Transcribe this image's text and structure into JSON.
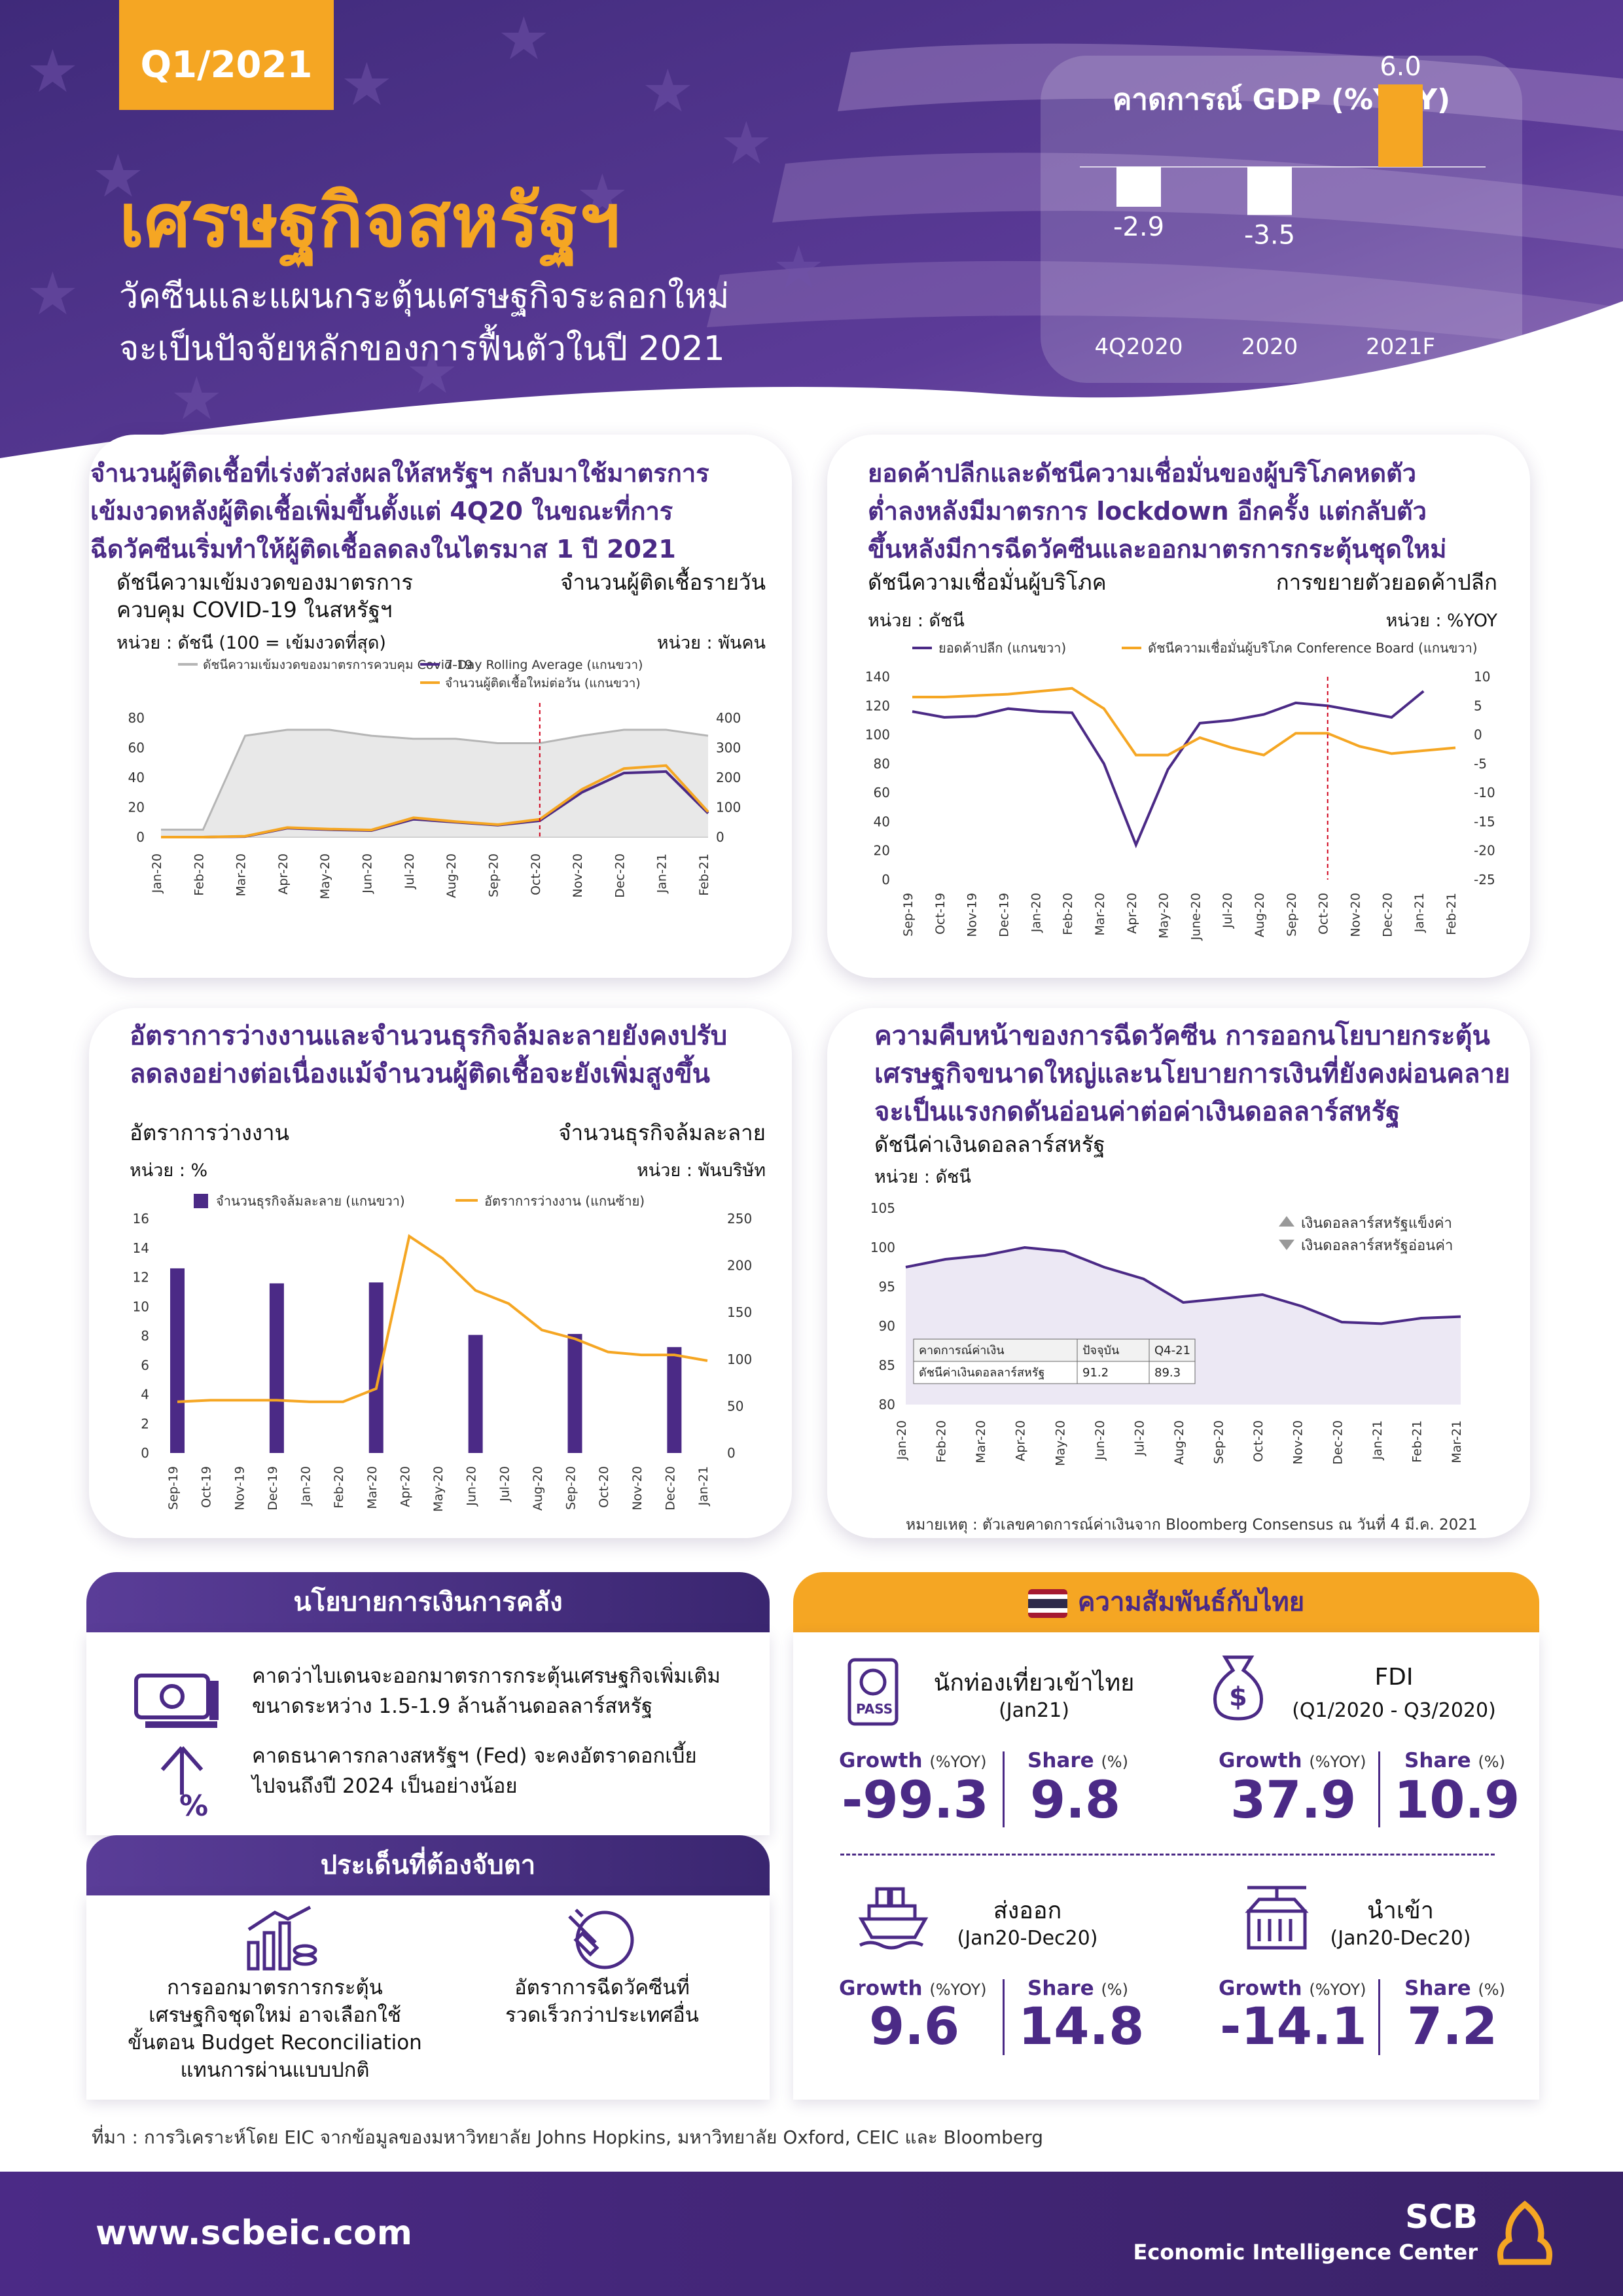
{
  "header": {
    "quarter": "Q1/2021",
    "title": "เศรษฐกิจสหรัฐฯ",
    "subtitle_line1": "วัคซีนและแผนกระตุ้นเศรษฐกิจระลอกใหม่",
    "subtitle_line2": "จะเป็นปัจจัยหลักของการฟื้นตัวในปี 2021"
  },
  "gdp": {
    "title": "คาดการณ์ GDP (%YOY)",
    "chart_data": {
      "type": "bar",
      "categories": [
        "4Q2020",
        "2020",
        "2021F"
      ],
      "values": [
        -2.9,
        -3.5,
        6.0
      ],
      "value_labels": [
        "-2.9",
        "-3.5",
        "6.0"
      ],
      "colors": [
        "#ffffff",
        "#ffffff",
        "#f5a623"
      ]
    }
  },
  "panel1": {
    "title": "จำนวนผู้ติดเชื้อที่เร่งตัวส่งผลให้สหรัฐฯ กลับมาใช้มาตรการ\nเข้มงวดหลังผู้ติดเชื้อเพิ่มขึ้นตั้งแต่ 4Q20 ในขณะที่การ\nฉีดวัคซีนเริ่มทำให้ผู้ติดเชื้อลดลงในไตรมาส 1 ปี 2021",
    "left_label": "ดัชนีความเข้มงวดของมาตรการ\nควบคุม COVID-19 ในสหรัฐฯ",
    "left_unit": "หน่วย : ดัชนี (100 = เข้มงวดที่สุด)",
    "right_label": "จำนวนผู้ติดเชื้อรายวัน",
    "right_unit": "หน่วย : พันคน",
    "chart_data": {
      "type": "line",
      "x": [
        "Jan-20",
        "Feb-20",
        "Mar-20",
        "Apr-20",
        "May-20",
        "Jun-20",
        "Jul-20",
        "Aug-20",
        "Sep-20",
        "Oct-20",
        "Nov-20",
        "Dec-20",
        "Jan-21",
        "Feb-21"
      ],
      "y_left_ticks": [
        "0",
        "20",
        "40",
        "60",
        "80"
      ],
      "y_right_ticks": [
        "0",
        "100",
        "200",
        "300",
        "400"
      ],
      "y_left_range": [
        0,
        90
      ],
      "y_right_range": [
        0,
        450
      ],
      "series": [
        {
          "name": "ดัชนีความเข้มงวดของมาตรการควบคุม Covid-19",
          "axis": "left",
          "color": "#b5b5b5",
          "values": [
            5,
            5,
            68,
            72,
            72,
            68,
            66,
            66,
            63,
            63,
            68,
            72,
            72,
            68
          ]
        },
        {
          "name": "7-Day Rolling Average (แกนขวา)",
          "axis": "right",
          "color": "#4b2a86",
          "values": [
            0,
            0,
            2,
            30,
            25,
            22,
            60,
            50,
            40,
            55,
            150,
            215,
            220,
            80
          ]
        },
        {
          "name": "จำนวนผู้ติดเชื้อใหม่ต่อวัน (แกนขวา)",
          "axis": "right",
          "color": "#f5a623",
          "values": [
            0,
            0,
            3,
            32,
            27,
            24,
            65,
            52,
            42,
            60,
            160,
            230,
            240,
            85
          ]
        }
      ]
    }
  },
  "panel2": {
    "title": "ยอดค้าปลีกและดัชนีความเชื่อมั่นของผู้บริโภคหดตัว\nต่ำลงหลังมีมาตรการ lockdown อีกครั้ง แต่กลับตัว\nขึ้นหลังมีการฉีดวัคซีนและออกมาตรการกระตุ้นชุดใหม่",
    "left_label": "ดัชนีความเชื่อมั่นผู้บริโภค",
    "left_unit": "หน่วย : ดัชนี",
    "right_label": "การขยายตัวยอดค้าปลีก",
    "right_unit": "หน่วย : %YOY",
    "chart_data": {
      "type": "line",
      "x": [
        "Sep-19",
        "Oct-19",
        "Nov-19",
        "Dec-19",
        "Jan-20",
        "Feb-20",
        "Mar-20",
        "Apr-20",
        "May-20",
        "June-20",
        "Jul-20",
        "Aug-20",
        "Sep-20",
        "Oct-20",
        "Nov-20",
        "Dec-20",
        "Jan-21",
        "Feb-21"
      ],
      "y_left_ticks": [
        "0",
        "20",
        "40",
        "60",
        "80",
        "100",
        "120",
        "140"
      ],
      "y_right_ticks": [
        "-25",
        "-20",
        "-15",
        "-10",
        "-5",
        "0",
        "5",
        "10"
      ],
      "y_left_range": [
        0,
        140
      ],
      "y_right_range": [
        -25,
        10
      ],
      "series": [
        {
          "name": "ยอดค้าปลีก (แกนขวา)",
          "axis": "right",
          "color": "#4b2a86",
          "values": [
            4.0,
            3.0,
            3.2,
            4.5,
            4.0,
            3.8,
            -5.0,
            -19.0,
            -6.0,
            2.0,
            2.5,
            3.5,
            5.5,
            5.0,
            4.0,
            3.0,
            7.5,
            null
          ]
        },
        {
          "name": "ดัชนีความเชื่อมั่นผู้บริโภค Conference Board (แกนขวา)",
          "axis": "left",
          "color": "#f5a623",
          "values": [
            126,
            126,
            127,
            128,
            130,
            132,
            118,
            86,
            86,
            98,
            91,
            86,
            101,
            101,
            92,
            87,
            89,
            91
          ]
        }
      ]
    }
  },
  "panel3": {
    "title": "อัตราการว่างงานและจำนวนธุรกิจล้มละลายยังคงปรับ\nลดลงอย่างต่อเนื่องแม้จำนวนผู้ติดเชื้อจะยังเพิ่มสูงขึ้น",
    "left_label": "อัตราการว่างงาน",
    "left_unit": "หน่วย : %",
    "right_label": "จำนวนธุรกิจล้มละลาย",
    "right_unit": "หน่วย : พันบริษัท",
    "chart_data": {
      "type": "bar",
      "x": [
        "Sep-19",
        "Oct-19",
        "Nov-19",
        "Dec-19",
        "Jan-20",
        "Feb-20",
        "Mar-20",
        "Apr-20",
        "May-20",
        "Jun-20",
        "Jul-20",
        "Aug-20",
        "Sep-20",
        "Oct-20",
        "Nov-20",
        "Dec-20",
        "Jan-21"
      ],
      "y_left_ticks": [
        "0",
        "2",
        "4",
        "6",
        "8",
        "10",
        "12",
        "14",
        "16"
      ],
      "y_right_ticks": [
        "0",
        "50",
        "100",
        "150",
        "200",
        "250"
      ],
      "y_left_range": [
        0,
        16
      ],
      "y_right_range": [
        0,
        250
      ],
      "series": [
        {
          "name": "จำนวนธุรกิจล้มละลาย (แกนขวา)",
          "axis": "right",
          "color": "#4b2a86",
          "values": [
            197,
            null,
            null,
            181,
            null,
            null,
            182,
            null,
            null,
            126,
            null,
            null,
            127,
            null,
            null,
            113,
            null
          ]
        },
        {
          "name": "อัตราการว่างงาน (แกนซ้าย)",
          "axis": "left",
          "color": "#f5a623",
          "values": [
            3.5,
            3.6,
            3.6,
            3.6,
            3.5,
            3.5,
            4.4,
            14.8,
            13.3,
            11.1,
            10.2,
            8.4,
            7.8,
            6.9,
            6.7,
            6.7,
            6.3
          ]
        }
      ]
    }
  },
  "panel4": {
    "title": "ความคืบหน้าของการฉีดวัคซีน การออกนโยบายกระตุ้น\nเศรษฐกิจขนาดใหญ่และนโยบายการเงินที่ยังคงผ่อนคลาย\nจะเป็นแรงกดดันอ่อนค่าต่อค่าเงินดอลลาร์สหรัฐ",
    "left_label": "ดัชนีค่าเงินดอลลาร์สหรัฐ",
    "left_unit": "หน่วย : ดัชนี",
    "legend_up": "เงินดอลลาร์สหรัฐแข็งค่า",
    "legend_down": "เงินดอลลาร์สหรัฐอ่อนค่า",
    "note": "หมายเหตุ : ตัวเลขคาดการณ์ค่าเงินจาก Bloomberg Consensus ณ วันที่ 4 มี.ค. 2021",
    "forecast_table": {
      "headers": [
        "คาดการณ์ค่าเงิน",
        "ปัจจุบัน",
        "Q4-21"
      ],
      "row": [
        "ดัชนีค่าเงินดอลลาร์สหรัฐ",
        "91.2",
        "89.3"
      ]
    },
    "chart_data": {
      "type": "line",
      "x": [
        "Jan-20",
        "Feb-20",
        "Mar-20",
        "Apr-20",
        "May-20",
        "Jun-20",
        "Jul-20",
        "Aug-20",
        "Sep-20",
        "Oct-20",
        "Nov-20",
        "Dec-20",
        "Jan-21",
        "Feb-21",
        "Mar-21"
      ],
      "y_ticks": [
        "80",
        "85",
        "90",
        "95",
        "100",
        "105"
      ],
      "y_range": [
        80,
        105
      ],
      "series": [
        {
          "name": "ดัชนีค่าเงินดอลลาร์สหรัฐ",
          "color": "#4b2a86",
          "values": [
            97.5,
            98.5,
            99.0,
            100.0,
            99.5,
            97.5,
            96.0,
            93.0,
            93.5,
            94.0,
            92.5,
            90.5,
            90.3,
            91.0,
            91.2
          ]
        }
      ]
    }
  },
  "fiscal": {
    "title": "นโยบายการเงินการคลัง",
    "item1": "คาดว่าไบเดนจะออกมาตรการกระตุ้นเศรษฐกิจเพิ่มเติม\nขนาดระหว่าง 1.5-1.9 ล้านล้านดอลลาร์สหรัฐ",
    "item2": "คาดธนาคารกลางสหรัฐฯ (Fed) จะคงอัตราดอกเบี้ย\nไปจนถึงปี 2024 เป็นอย่างน้อย"
  },
  "watch": {
    "title": "ประเด็นที่ต้องจับตา",
    "item1": "การออกมาตรการกระตุ้น\nเศรษฐกิจชุดใหม่ อาจเลือกใช้\nขั้นตอน Budget Reconciliation\nแทนการผ่านแบบปกติ",
    "item2": "อัตราการฉีดวัคซีนที่\nรวดเร็วกว่าประเทศอื่น"
  },
  "thai": {
    "title": "ความสัมพันธ์กับไทย",
    "growth_label": "Growth",
    "growth_unit": "(%YOY)",
    "share_label": "Share",
    "share_unit": "(%)",
    "tourists": {
      "title": "นักท่องเที่ยวเข้าไทย",
      "period": "(Jan21)",
      "growth": "-99.3",
      "share": "9.8"
    },
    "fdi": {
      "title": "FDI",
      "period": "(Q1/2020 - Q3/2020)",
      "growth": "37.9",
      "share": "10.9"
    },
    "exports": {
      "title": "ส่งออก",
      "period": "(Jan20-Dec20)",
      "growth": "9.6",
      "share": "14.8"
    },
    "imports": {
      "title": "นำเข้า",
      "period": "(Jan20-Dec20)",
      "growth": "-14.1",
      "share": "7.2"
    }
  },
  "footer": {
    "source": "ที่มา : การวิเคราะห์โดย EIC จากข้อมูลของมหาวิทยาลัย Johns Hopkins, มหาวิทยาลัย Oxford, CEIC และ Bloomberg",
    "website": "www.scbeic.com",
    "brand": "SCB",
    "brand_sub": "Economic Intelligence Center"
  },
  "colors": {
    "purple": "#4b2a86",
    "orange": "#f5a623",
    "gray": "#b5b5b5"
  }
}
